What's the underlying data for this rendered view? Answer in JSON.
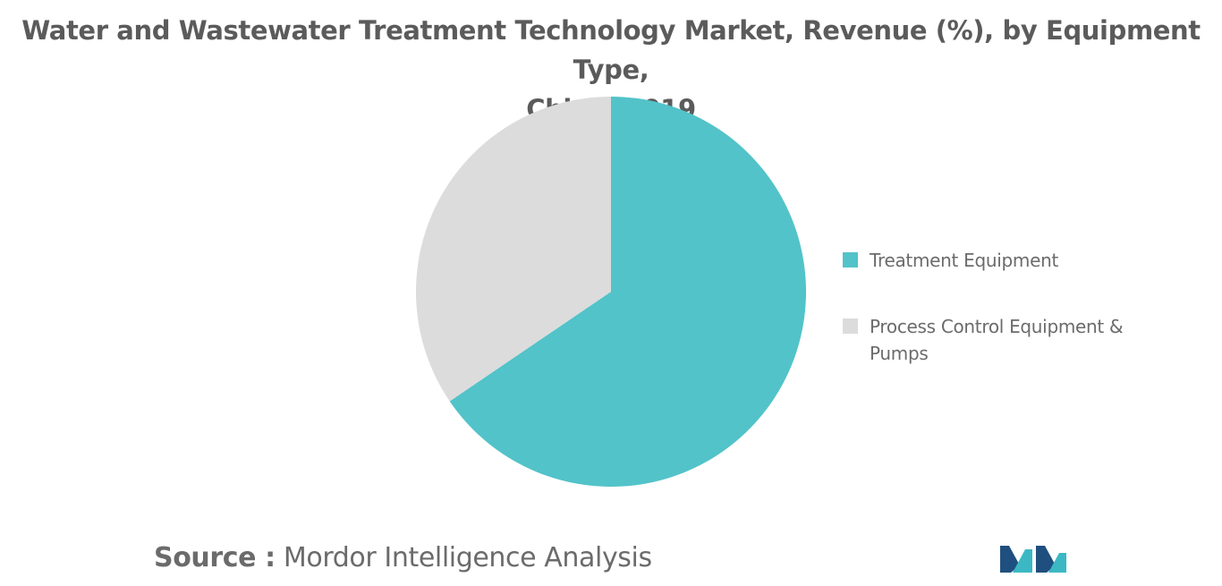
{
  "chart_data": {
    "type": "pie",
    "title": "Water and Wastewater Treatment Technology Market, Revenue (%), by Equipment Type, China, 2019",
    "title_lines": [
      "Water and Wastewater Treatment Technology Market, Revenue (%), by Equipment Type,",
      "China, 2019"
    ],
    "slices": [
      {
        "label": "Treatment Equipment",
        "value": 65.5,
        "color": "#52c3c9"
      },
      {
        "label": "Process Control Equipment & Pumps",
        "value": 34.5,
        "color": "#dcdcdc"
      }
    ],
    "legend_position": "right"
  },
  "source": {
    "label": "Source :",
    "text": "Mordor Intelligence Analysis"
  },
  "logo": {
    "icon": "mordor-intelligence-logo-icon",
    "colors": [
      "#1f4f7f",
      "#3bb8c4"
    ]
  }
}
